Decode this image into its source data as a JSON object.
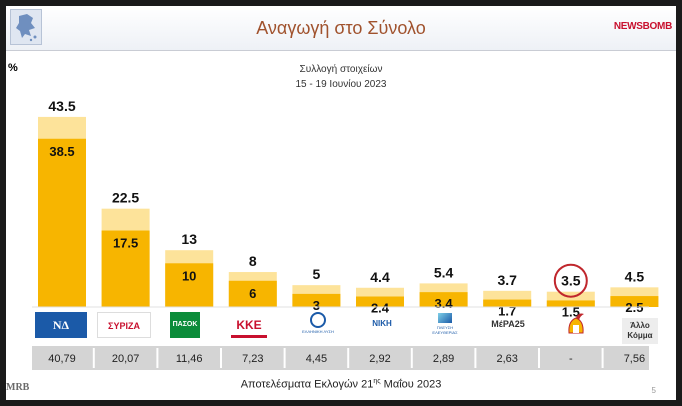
{
  "header": {
    "title": "Αναγωγή στο Σύνολο",
    "brand_part1": "NEWS",
    "brand_part2": "BOMB"
  },
  "subtitle_line1": "Συλλογή στοιχείων",
  "subtitle_line2": "15 - 19 Ιουνίου 2023",
  "percent_sign": "%",
  "footer_text_main": "Αποτελέσματα Εκλογών 21",
  "footer_text_sup": "ης",
  "footer_text_end": " Μαΐου 2023",
  "mrb_logo": "MRB",
  "page_number": "5",
  "party_logo_texts": [
    "ΝΔ",
    "ΣΥΡΙΖΑ",
    "ΠΑΣΟΚ",
    "ΚΚΕ",
    "ΕΛΛΗΝΙΚΗ ΛΥΣΗ",
    "ΝΙΚΗ",
    "ΠΛΕΥΣΗ ΕΛΕΥΘΕΡΙΑΣ",
    "ΜέΡΑ25",
    "",
    "Άλλο Κόμμα"
  ],
  "colors": {
    "bar_main": "#f7b500",
    "bar_light": "#fde39a",
    "band": "#d4d4d4",
    "highlight_circle": "#c0272d"
  },
  "chart_data": {
    "type": "bar",
    "title": "Αναγωγή στο Σύνολο",
    "xlabel": "",
    "ylabel": "%",
    "ylim": [
      0,
      45
    ],
    "grid": false,
    "categories": [
      "ΝΔ",
      "ΣΥΡΙΖΑ",
      "ΠΑΣΟΚ",
      "ΚΚΕ",
      "Ελληνική Λύση",
      "ΝΙΚΗ",
      "Πλεύση Ελευθερίας",
      "ΜέΡΑ25",
      "",
      "Άλλο Κόμμα"
    ],
    "series": [
      {
        "values": [
          43.5,
          22.5,
          13,
          8,
          5,
          4.4,
          5.4,
          3.7,
          3.5,
          4.5
        ],
        "labels": [
          "43.5",
          "22.5",
          "13",
          "8",
          "5",
          "4.4",
          "5.4",
          "3.7",
          "3.5",
          "4.5"
        ]
      },
      {
        "values": [
          38.5,
          17.5,
          10,
          6,
          3,
          2.4,
          3.4,
          1.7,
          1.5,
          2.5
        ],
        "labels": [
          "38.5",
          "17.5",
          "10",
          "6",
          "3",
          "2.4",
          "3.4",
          "1.7",
          "1.5",
          "2.5"
        ]
      }
    ],
    "election_results": [
      "40,79",
      "20,07",
      "11,46",
      "7,23",
      "4,45",
      "2,92",
      "2,89",
      "2,63",
      "-",
      "7,56"
    ],
    "highlighted_index": 8
  }
}
